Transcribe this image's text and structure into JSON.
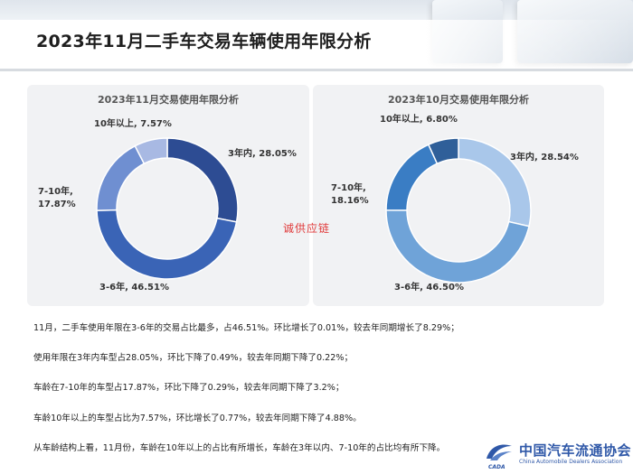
{
  "page": {
    "title": "2023年11月二手车交易车辆使用年限分析",
    "watermark": "诚供应链"
  },
  "colors": {
    "nov": [
      "#2d4c93",
      "#3a64b6",
      "#6f8fd1",
      "#a8b9e3"
    ],
    "oct": [
      "#a9c7ea",
      "#6fa3d8",
      "#3a7dc4",
      "#2f5f99"
    ],
    "hole": "#ffffff",
    "panel": "#f1f2f4",
    "watermark": "#e03a3a"
  },
  "chart_data": [
    {
      "type": "pie",
      "variant": "donut",
      "title": "2023年11月交易使用年限分析",
      "categories": [
        "3年内",
        "3-6年",
        "7-10年",
        "10年以上"
      ],
      "values": [
        28.05,
        46.51,
        17.87,
        7.57
      ],
      "labels": [
        {
          "line1": "3年内, 28.05%",
          "line2": ""
        },
        {
          "line1": "3-6年, 46.51%",
          "line2": ""
        },
        {
          "line1": "7-10年,",
          "line2": "17.87%"
        },
        {
          "line1": "10年以上, 7.57%",
          "line2": ""
        }
      ]
    },
    {
      "type": "pie",
      "variant": "donut",
      "title": "2023年10月交易使用年限分析",
      "categories": [
        "3年内",
        "3-6年",
        "7-10年",
        "10年以上"
      ],
      "values": [
        28.54,
        46.5,
        18.16,
        6.8
      ],
      "labels": [
        {
          "line1": "3年内, 28.54%",
          "line2": ""
        },
        {
          "line1": "3-6年, 46.50%",
          "line2": ""
        },
        {
          "line1": "7-10年,",
          "line2": "18.16%"
        },
        {
          "line1": "10年以上, 6.80%",
          "line2": ""
        }
      ]
    }
  ],
  "paragraphs": [
    "11月，二手车使用年限在3-6年的交易占比最多，占46.51%。环比增长了0.01%，较去年同期增长了8.29%；",
    "使用年限在3年内车型占28.05%，环比下降了0.49%，较去年同期下降了0.22%；",
    "车龄在7-10年的车型占17.87%，环比下降了0.29%，较去年同期下降了3.2%；",
    "车龄10年以上的车型占比为7.57%，环比增长了0.77%，较去年同期下降了4.88%。",
    "从车龄结构上看，11月份，车龄在10年以上的占比有所增长，车龄在3年以内、7-10年的占比均有所下降。"
  ],
  "logo": {
    "name_cn": "中国汽车流通协会",
    "name_en": "China Automobile Dealers Association",
    "abbr": "CADA"
  }
}
